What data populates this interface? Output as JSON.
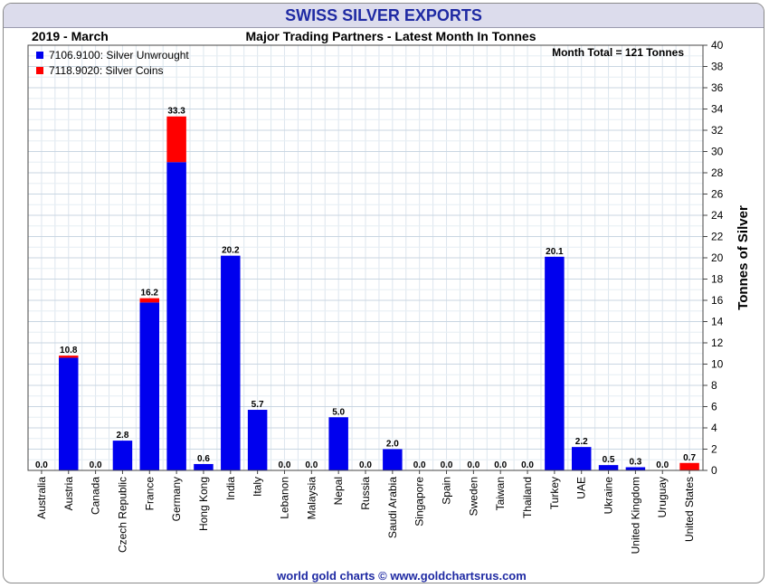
{
  "title": "SWISS SILVER EXPORTS",
  "period": "2019 - March",
  "subtitle": "Major Trading Partners - Latest Month In Tonnes",
  "month_total": "Month Total = 121 Tonnes",
  "footer": "world gold charts © www.goldchartsrus.com",
  "colors": {
    "unwrought": "#0000ee",
    "coins": "#ff0000",
    "title": "#1f2aa3"
  },
  "chart_data": {
    "type": "bar",
    "stacked": true,
    "ylabel": "Tonnes of Silver",
    "ylim": [
      0,
      40
    ],
    "ytick_step": 2,
    "grid": true,
    "legend_position": "top-left",
    "categories": [
      "Australia",
      "Austria",
      "Canada",
      "Czech Republic",
      "France",
      "Germany",
      "Hong Kong",
      "India",
      "Italy",
      "Lebanon",
      "Malaysia",
      "Nepal",
      "Russia",
      "Saudi Arabia",
      "Singapore",
      "Spain",
      "Sweden",
      "Taiwan",
      "Thailand",
      "Turkey",
      "UAE",
      "Ukraine",
      "United Kingdom",
      "Uruguay",
      "United States"
    ],
    "series": [
      {
        "name": "7106.9100: Silver Unwrought",
        "color": "#0000ee",
        "values": [
          0,
          10.6,
          0,
          2.8,
          15.8,
          29.0,
          0.6,
          20.2,
          5.7,
          0,
          0,
          5.0,
          0,
          2.0,
          0,
          0,
          0,
          0,
          0,
          20.1,
          2.2,
          0.5,
          0.3,
          0,
          0
        ]
      },
      {
        "name": "7118.9020: Silver Coins",
        "color": "#ff0000",
        "values": [
          0,
          0.2,
          0,
          0,
          0.4,
          4.3,
          0,
          0,
          0,
          0,
          0,
          0,
          0,
          0,
          0,
          0,
          0,
          0,
          0,
          0,
          0,
          0,
          0,
          0,
          0.7
        ]
      }
    ],
    "totals": [
      "0.0",
      "10.8",
      "0.0",
      "2.8",
      "16.2",
      "33.3",
      "0.6",
      "20.2",
      "5.7",
      "0.0",
      "0.0",
      "5.0",
      "0.0",
      "2.0",
      "0.0",
      "0.0",
      "0.0",
      "0.0",
      "0.0",
      "20.1",
      "2.2",
      "0.5",
      "0.3",
      "0.0",
      "0.7"
    ]
  }
}
